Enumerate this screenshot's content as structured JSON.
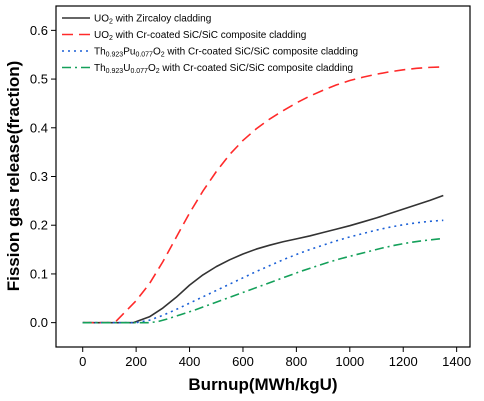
{
  "chart_data": {
    "type": "line",
    "xlabel": "Burnup(MWh/kgU)",
    "ylabel": "Fission gas release(fraction)",
    "xlim": [
      -100,
      1450
    ],
    "ylim": [
      -0.05,
      0.65
    ],
    "x_ticks": [
      0,
      200,
      400,
      600,
      800,
      1000,
      1200,
      1400
    ],
    "y_ticks": [
      0.0,
      0.1,
      0.2,
      0.3,
      0.4,
      0.5,
      0.6
    ],
    "x_tick_labels": [
      "0",
      "200",
      "400",
      "600",
      "800",
      "1000",
      "1200",
      "1400"
    ],
    "y_tick_labels": [
      "0.0",
      "0.1",
      "0.2",
      "0.3",
      "0.4",
      "0.5",
      "0.6"
    ],
    "grid": false,
    "legend_position": "top-left",
    "series": [
      {
        "name": "UO2 with Zircaloy cladding",
        "legend_parts": [
          [
            "UO",
            ""
          ],
          [
            "2",
            "sub"
          ],
          [
            " with Zircaloy cladding",
            ""
          ]
        ],
        "color": "#333333",
        "dash": "solid",
        "x": [
          0,
          100,
          190,
          250,
          300,
          350,
          400,
          450,
          500,
          550,
          600,
          650,
          700,
          750,
          800,
          850,
          900,
          950,
          1000,
          1050,
          1100,
          1150,
          1200,
          1250,
          1300,
          1350
        ],
        "y": [
          0,
          0,
          0,
          0.012,
          0.03,
          0.052,
          0.077,
          0.098,
          0.115,
          0.129,
          0.141,
          0.151,
          0.159,
          0.166,
          0.172,
          0.178,
          0.185,
          0.192,
          0.199,
          0.207,
          0.215,
          0.224,
          0.233,
          0.242,
          0.251,
          0.261
        ]
      },
      {
        "name": "UO2 with Cr-coated SiC/SiC composite cladding",
        "legend_parts": [
          [
            "UO",
            ""
          ],
          [
            "2",
            "sub"
          ],
          [
            " with Cr-coated SiC/SiC composite cladding",
            ""
          ]
        ],
        "color": "#ff2a2a",
        "dash": "long-dash",
        "x": [
          0,
          50,
          120,
          200,
          250,
          300,
          350,
          400,
          450,
          500,
          550,
          600,
          650,
          700,
          750,
          800,
          850,
          900,
          950,
          1000,
          1050,
          1100,
          1150,
          1200,
          1250,
          1300,
          1350
        ],
        "y": [
          0,
          0,
          0,
          0.045,
          0.08,
          0.125,
          0.175,
          0.225,
          0.27,
          0.31,
          0.345,
          0.374,
          0.398,
          0.418,
          0.435,
          0.451,
          0.465,
          0.477,
          0.488,
          0.497,
          0.504,
          0.51,
          0.515,
          0.519,
          0.522,
          0.524,
          0.525
        ]
      },
      {
        "name": "Th0.923Pu0.077O2 with Cr-coated SiC/SiC composite cladding",
        "legend_parts": [
          [
            "Th",
            ""
          ],
          [
            "0.923",
            "sub"
          ],
          [
            "Pu",
            ""
          ],
          [
            "0.077",
            "sub"
          ],
          [
            "O",
            ""
          ],
          [
            "2",
            "sub"
          ],
          [
            " with Cr-coated SiC/SiC composite cladding",
            ""
          ]
        ],
        "color": "#1a5fd6",
        "dash": "dot",
        "x": [
          0,
          100,
          200,
          250,
          300,
          350,
          400,
          450,
          500,
          550,
          600,
          650,
          700,
          750,
          800,
          850,
          900,
          950,
          1000,
          1050,
          1100,
          1150,
          1200,
          1250,
          1300,
          1350
        ],
        "y": [
          0,
          0,
          0,
          0.005,
          0.015,
          0.027,
          0.04,
          0.053,
          0.066,
          0.079,
          0.092,
          0.105,
          0.117,
          0.129,
          0.14,
          0.15,
          0.159,
          0.168,
          0.176,
          0.183,
          0.19,
          0.196,
          0.201,
          0.205,
          0.208,
          0.21
        ]
      },
      {
        "name": "Th0.923U0.077O2 with Cr-coated SiC/SiC composite cladding",
        "legend_parts": [
          [
            "Th",
            ""
          ],
          [
            "0.923",
            "sub"
          ],
          [
            "U",
            ""
          ],
          [
            "0.077",
            "sub"
          ],
          [
            "O",
            ""
          ],
          [
            "2",
            "sub"
          ],
          [
            " with Cr-coated SiC/SiC composite cladding",
            ""
          ]
        ],
        "color": "#14a05a",
        "dash": "dash-dot",
        "x": [
          0,
          100,
          200,
          250,
          280,
          320,
          370,
          420,
          470,
          520,
          570,
          620,
          670,
          720,
          770,
          820,
          870,
          920,
          970,
          1020,
          1070,
          1120,
          1170,
          1220,
          1270,
          1320,
          1350
        ],
        "y": [
          0,
          0,
          0,
          0,
          0.002,
          0.008,
          0.017,
          0.026,
          0.036,
          0.046,
          0.056,
          0.066,
          0.076,
          0.086,
          0.096,
          0.106,
          0.115,
          0.124,
          0.132,
          0.139,
          0.146,
          0.153,
          0.159,
          0.164,
          0.168,
          0.171,
          0.173
        ]
      }
    ]
  }
}
